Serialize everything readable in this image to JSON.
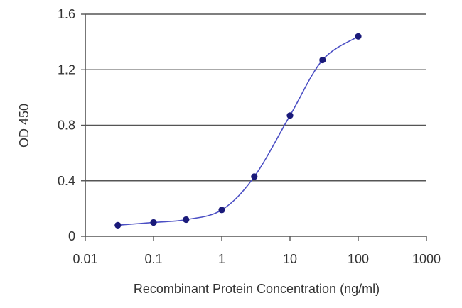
{
  "chart_data": {
    "type": "line",
    "xlabel": "Recombinant Protein Concentration (ng/ml)",
    "ylabel": "OD 450",
    "x_scale": "log",
    "xlim": [
      0.01,
      1000
    ],
    "ylim": [
      0,
      1.6
    ],
    "x_ticks": [
      "0.01",
      "0.1",
      "1",
      "10",
      "100",
      "1000"
    ],
    "y_ticks": [
      "0",
      "0.4",
      "0.8",
      "1.2",
      "1.6"
    ],
    "grid": "horizontal",
    "series": [
      {
        "x": [
          0.03,
          0.1,
          0.3,
          1,
          3,
          10,
          30,
          100
        ],
        "y": [
          0.08,
          0.1,
          0.12,
          0.19,
          0.43,
          0.87,
          1.27,
          1.44
        ]
      }
    ],
    "colors": {
      "line": "#4b4fc4",
      "marker": "#1a1a7a",
      "grid": "#555555",
      "axis": "#555555"
    }
  }
}
